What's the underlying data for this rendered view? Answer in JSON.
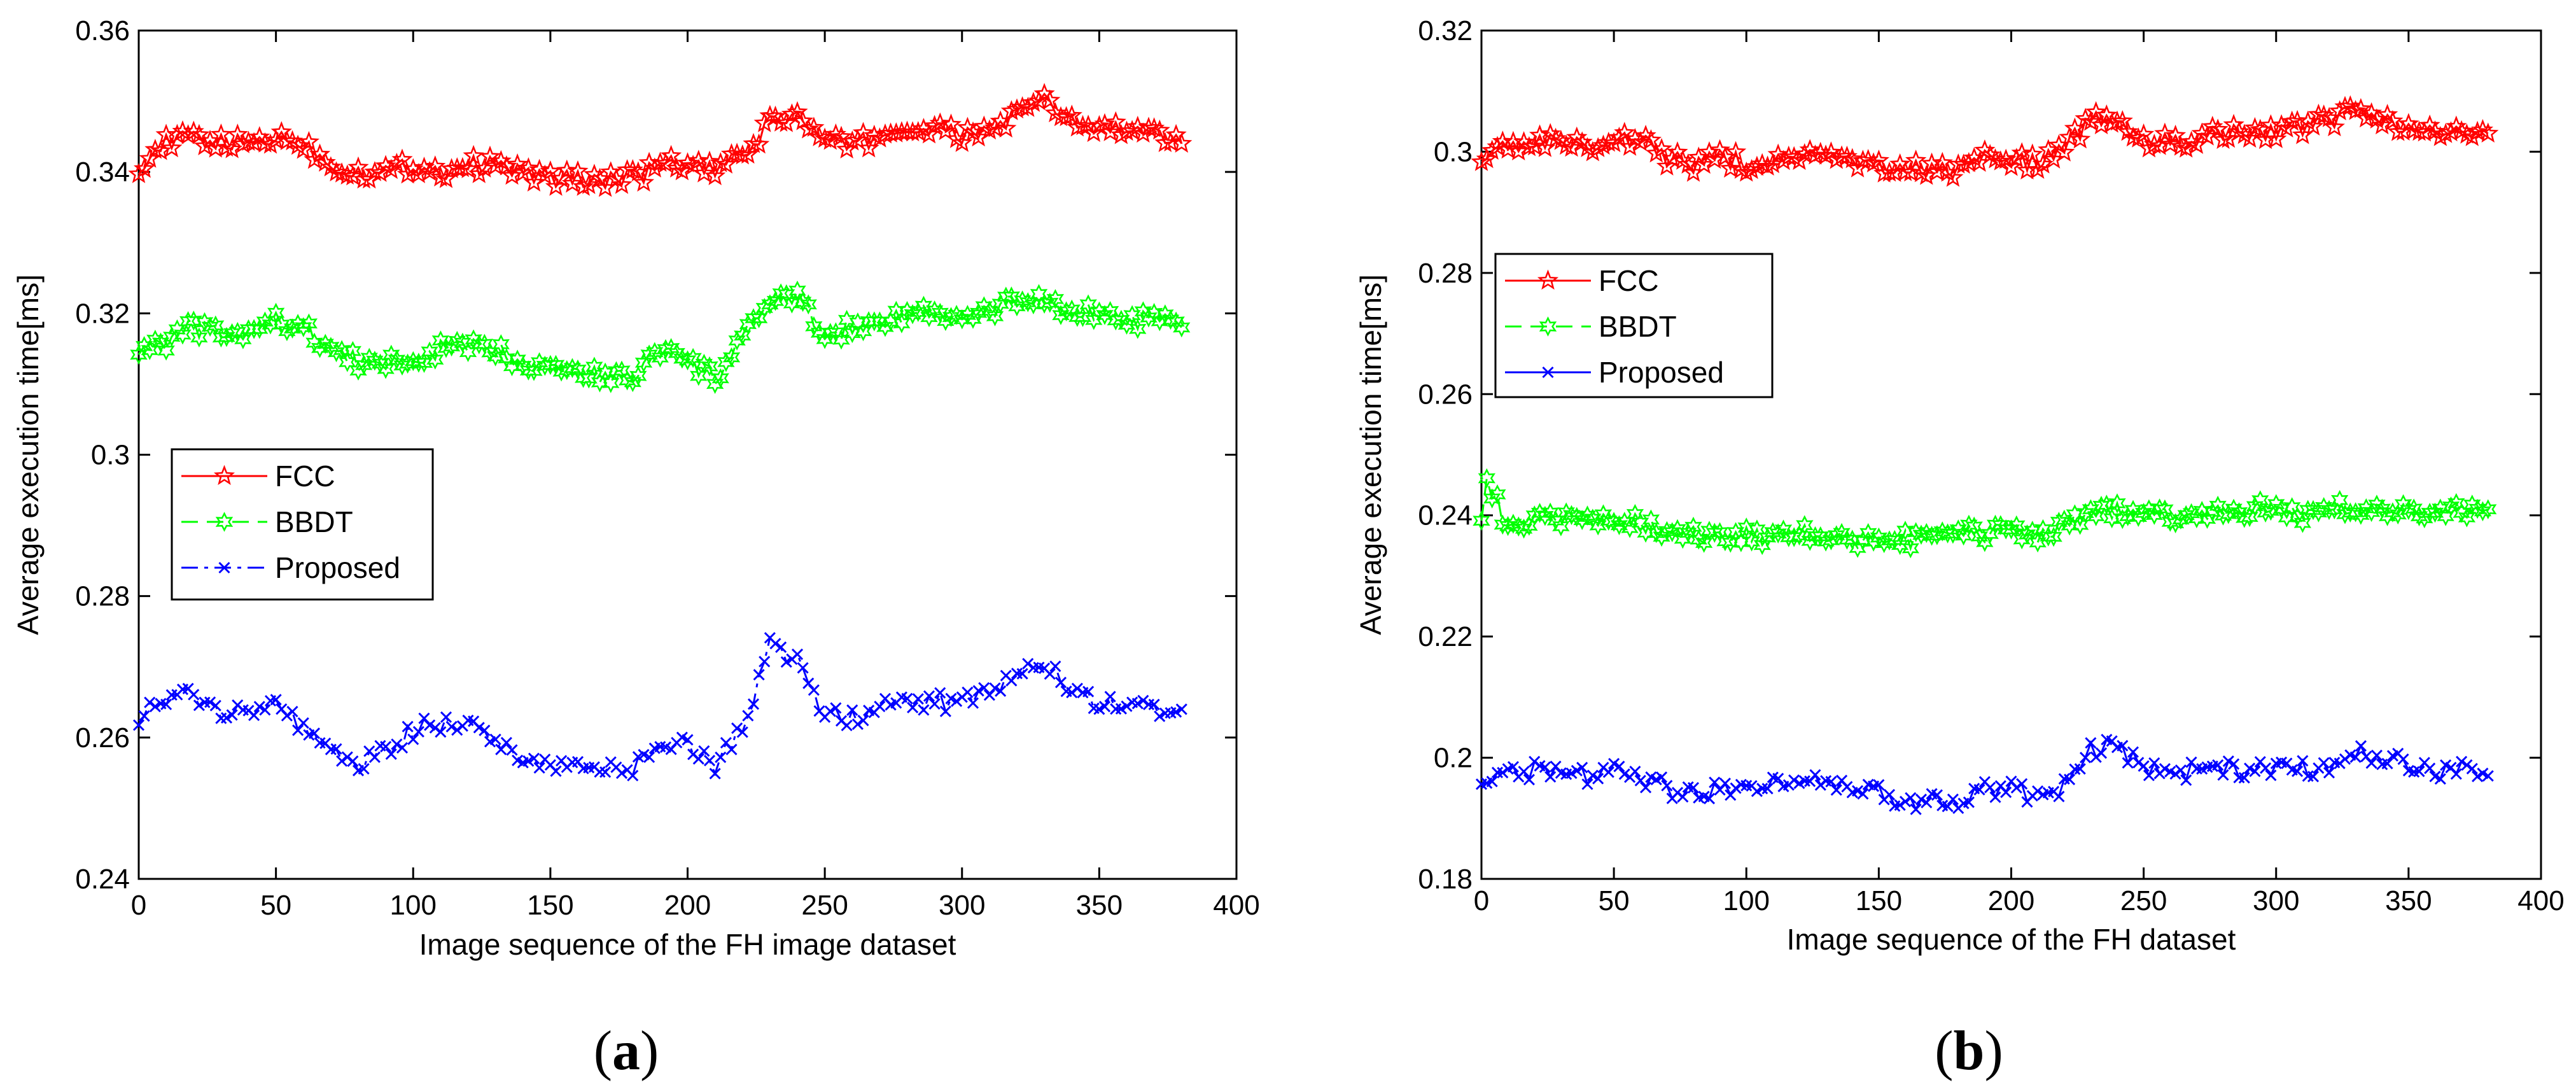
{
  "chart_data": [
    {
      "type": "line",
      "panel_label": "a",
      "title": "",
      "xlabel": "Image sequence of the FH image dataset",
      "ylabel": "Average execution time[ms]",
      "xlim": [
        0,
        400
      ],
      "ylim": [
        0.24,
        0.36
      ],
      "xticks": [
        0,
        50,
        100,
        150,
        200,
        250,
        300,
        350,
        400
      ],
      "yticks": [
        0.24,
        0.26,
        0.28,
        0.3,
        0.32,
        0.34,
        0.36
      ],
      "xtick_labels": [
        "0",
        "50",
        "100",
        "150",
        "200",
        "250",
        "300",
        "350",
        "400"
      ],
      "ytick_labels": [
        "0.24",
        "0.26",
        "0.28",
        "0.3",
        "0.32",
        "0.34",
        "0.36"
      ],
      "grid": false,
      "legend_position": "center-left",
      "x_range": [
        0,
        380
      ],
      "series": [
        {
          "name": "FCC",
          "color": "#ff0000",
          "line_style": "solid",
          "marker": "star",
          "x": [
            0,
            10,
            20,
            30,
            40,
            50,
            60,
            70,
            80,
            90,
            100,
            110,
            120,
            130,
            140,
            150,
            160,
            170,
            180,
            190,
            200,
            210,
            220,
            230,
            240,
            250,
            260,
            270,
            280,
            290,
            300,
            310,
            320,
            330,
            340,
            350,
            360,
            370,
            380
          ],
          "values": [
            0.341,
            0.344,
            0.345,
            0.344,
            0.344,
            0.345,
            0.344,
            0.341,
            0.34,
            0.34,
            0.341,
            0.34,
            0.341,
            0.341,
            0.34,
            0.339,
            0.339,
            0.339,
            0.339,
            0.341,
            0.341,
            0.34,
            0.342,
            0.347,
            0.348,
            0.344,
            0.344,
            0.345,
            0.346,
            0.346,
            0.345,
            0.346,
            0.348,
            0.35,
            0.347,
            0.346,
            0.346,
            0.345,
            0.344
          ]
        },
        {
          "name": "BBDT",
          "color": "#00ff00",
          "line_style": "dashed",
          "marker": "hexagram",
          "x": [
            0,
            10,
            20,
            30,
            40,
            50,
            60,
            70,
            80,
            90,
            100,
            110,
            120,
            130,
            140,
            150,
            160,
            170,
            180,
            190,
            200,
            210,
            220,
            230,
            240,
            250,
            260,
            270,
            280,
            290,
            300,
            310,
            320,
            330,
            340,
            350,
            360,
            370,
            380
          ],
          "values": [
            0.315,
            0.316,
            0.318,
            0.317,
            0.317,
            0.319,
            0.318,
            0.315,
            0.313,
            0.313,
            0.313,
            0.315,
            0.315,
            0.315,
            0.313,
            0.313,
            0.312,
            0.311,
            0.311,
            0.315,
            0.313,
            0.311,
            0.316,
            0.322,
            0.322,
            0.317,
            0.318,
            0.319,
            0.32,
            0.32,
            0.319,
            0.32,
            0.322,
            0.322,
            0.32,
            0.32,
            0.319,
            0.319,
            0.318
          ]
        },
        {
          "name": "Proposed",
          "color": "#0000ff",
          "line_style": "dashdot",
          "marker": "x",
          "x": [
            0,
            10,
            20,
            30,
            40,
            50,
            60,
            70,
            80,
            90,
            100,
            110,
            120,
            130,
            140,
            150,
            160,
            170,
            180,
            190,
            200,
            210,
            220,
            230,
            240,
            250,
            260,
            270,
            280,
            290,
            300,
            310,
            320,
            330,
            340,
            350,
            360,
            370,
            380
          ],
          "values": [
            0.263,
            0.265,
            0.266,
            0.264,
            0.264,
            0.265,
            0.261,
            0.258,
            0.256,
            0.258,
            0.261,
            0.262,
            0.262,
            0.26,
            0.257,
            0.256,
            0.256,
            0.256,
            0.255,
            0.26,
            0.259,
            0.256,
            0.261,
            0.273,
            0.271,
            0.263,
            0.263,
            0.264,
            0.265,
            0.265,
            0.265,
            0.266,
            0.269,
            0.271,
            0.267,
            0.265,
            0.264,
            0.264,
            0.264
          ]
        }
      ]
    },
    {
      "type": "line",
      "panel_label": "b",
      "title": "",
      "xlabel": "Image sequence of the FH dataset",
      "ylabel": "Average execution time[ms]",
      "xlim": [
        0,
        400
      ],
      "ylim": [
        0.18,
        0.32
      ],
      "xticks": [
        0,
        50,
        100,
        150,
        200,
        250,
        300,
        350,
        400
      ],
      "yticks": [
        0.18,
        0.2,
        0.22,
        0.24,
        0.26,
        0.28,
        0.3,
        0.32
      ],
      "xtick_labels": [
        "0",
        "50",
        "100",
        "150",
        "200",
        "250",
        "300",
        "350",
        "400"
      ],
      "ytick_labels": [
        "0.18",
        "0.2",
        "0.22",
        "0.24",
        "0.26",
        "0.28",
        "0.3",
        "0.32"
      ],
      "grid": false,
      "legend_position": "upper-left",
      "x_range": [
        0,
        380
      ],
      "series": [
        {
          "name": "FCC",
          "color": "#ff0000",
          "line_style": "solid",
          "marker": "star",
          "x": [
            0,
            10,
            20,
            30,
            40,
            50,
            60,
            70,
            80,
            90,
            100,
            110,
            120,
            130,
            140,
            150,
            160,
            170,
            180,
            190,
            200,
            210,
            220,
            230,
            240,
            250,
            260,
            270,
            280,
            290,
            300,
            310,
            320,
            330,
            340,
            350,
            360,
            370,
            380
          ],
          "values": [
            0.299,
            0.301,
            0.302,
            0.301,
            0.301,
            0.302,
            0.302,
            0.299,
            0.298,
            0.299,
            0.298,
            0.298,
            0.299,
            0.299,
            0.298,
            0.297,
            0.297,
            0.297,
            0.297,
            0.299,
            0.299,
            0.298,
            0.301,
            0.305,
            0.306,
            0.302,
            0.302,
            0.302,
            0.303,
            0.303,
            0.303,
            0.304,
            0.305,
            0.307,
            0.305,
            0.304,
            0.303,
            0.303,
            0.303
          ]
        },
        {
          "name": "BBDT",
          "color": "#00ff00",
          "line_style": "dashed",
          "marker": "hexagram",
          "x": [
            0,
            2,
            10,
            20,
            30,
            40,
            50,
            60,
            70,
            80,
            90,
            100,
            110,
            120,
            130,
            140,
            150,
            160,
            170,
            180,
            190,
            200,
            210,
            220,
            230,
            240,
            250,
            260,
            270,
            280,
            290,
            300,
            310,
            320,
            330,
            340,
            350,
            360,
            370,
            380
          ],
          "values": [
            0.24,
            0.246,
            0.238,
            0.239,
            0.239,
            0.239,
            0.24,
            0.239,
            0.237,
            0.237,
            0.236,
            0.237,
            0.236,
            0.237,
            0.237,
            0.236,
            0.236,
            0.236,
            0.236,
            0.237,
            0.237,
            0.237,
            0.237,
            0.238,
            0.24,
            0.241,
            0.24,
            0.24,
            0.24,
            0.241,
            0.241,
            0.241,
            0.24,
            0.241,
            0.241,
            0.241,
            0.241,
            0.241,
            0.241,
            0.241
          ]
        },
        {
          "name": "Proposed",
          "color": "#0000ff",
          "line_style": "solid",
          "marker": "x",
          "x": [
            0,
            10,
            20,
            30,
            40,
            50,
            60,
            70,
            80,
            90,
            100,
            110,
            120,
            130,
            140,
            150,
            160,
            170,
            180,
            190,
            200,
            210,
            220,
            230,
            240,
            250,
            260,
            270,
            280,
            290,
            300,
            310,
            320,
            330,
            340,
            350,
            360,
            370,
            380
          ],
          "values": [
            0.197,
            0.197,
            0.198,
            0.197,
            0.197,
            0.198,
            0.197,
            0.195,
            0.194,
            0.195,
            0.195,
            0.196,
            0.197,
            0.196,
            0.195,
            0.194,
            0.193,
            0.193,
            0.192,
            0.195,
            0.195,
            0.193,
            0.195,
            0.201,
            0.202,
            0.198,
            0.197,
            0.198,
            0.198,
            0.198,
            0.198,
            0.198,
            0.199,
            0.201,
            0.2,
            0.199,
            0.198,
            0.198,
            0.197
          ]
        }
      ]
    }
  ],
  "captions": {
    "a": "a",
    "b": "b"
  }
}
